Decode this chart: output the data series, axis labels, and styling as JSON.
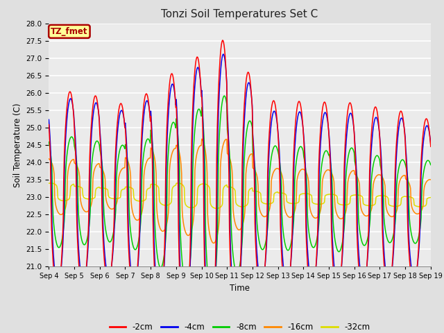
{
  "title": "Tonzi Soil Temperatures Set C",
  "xlabel": "Time",
  "ylabel": "Soil Temperature (C)",
  "ylim": [
    21.0,
    28.0
  ],
  "yticks": [
    21.0,
    21.5,
    22.0,
    22.5,
    23.0,
    23.5,
    24.0,
    24.5,
    25.0,
    25.5,
    26.0,
    26.5,
    27.0,
    27.5,
    28.0
  ],
  "xtick_labels": [
    "Sep 4",
    "Sep 5",
    "Sep 6",
    "Sep 7",
    "Sep 8",
    "Sep 9",
    "Sep 10",
    "Sep 11",
    "Sep 12",
    "Sep 13",
    "Sep 14",
    "Sep 15",
    "Sep 16",
    "Sep 17",
    "Sep 18",
    "Sep 19"
  ],
  "annotation_text": "TZ_fmet",
  "annotation_bg": "#FFFF99",
  "annotation_border": "#AA0000",
  "series_colors": [
    "#FF0000",
    "#0000EE",
    "#00CC00",
    "#FF8800",
    "#DDDD00"
  ],
  "series_labels": [
    "-2cm",
    "-4cm",
    "-8cm",
    "-16cm",
    "-32cm"
  ],
  "background_color": "#E0E0E0",
  "plot_bg_color": "#EBEBEB",
  "grid_color": "#FFFFFF",
  "n_days": 15,
  "n_points_per_day": 48,
  "base_temp": 23.15
}
